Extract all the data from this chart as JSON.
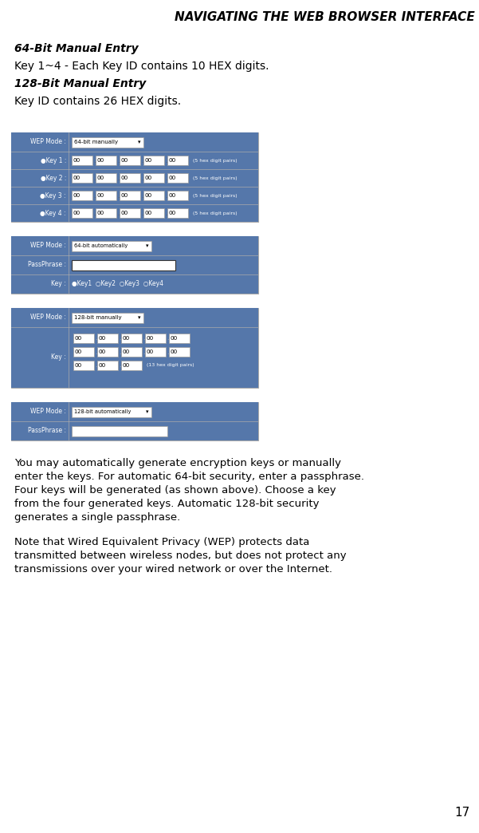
{
  "title": "NAVIGATING THE WEB BROWSER INTERFACE",
  "title_size": 11,
  "background_color": "#ffffff",
  "text_color": "#000000",
  "header_bg": "#5577aa",
  "table_bg": "#f5f5e0",
  "border_color": "#aaaaaa",
  "line1_italic": "64-Bit Manual Entry",
  "line2": "Key 1~4 - Each Key ID contains 10 HEX digits.",
  "line3_italic": "128-Bit Manual Entry",
  "line4": "Key ID contains 26 HEX digits.",
  "para1_line1": "You may automatically generate encryption keys or manually",
  "para1_line2": "enter the keys. For automatic 64-bit security, enter a passphrase.",
  "para1_line3": "Four keys will be generated (as shown above). Choose a key",
  "para1_line4": "from the four generated keys. Automatic 128-bit security",
  "para1_line5": "generates a single passphrase.",
  "para2_line1": "Note that Wired Equivalent Privacy (WEP) protects data",
  "para2_line2": "transmitted between wireless nodes, but does not protect any",
  "para2_line3": "transmissions over your wired network or over the Internet.",
  "page_number": "17"
}
